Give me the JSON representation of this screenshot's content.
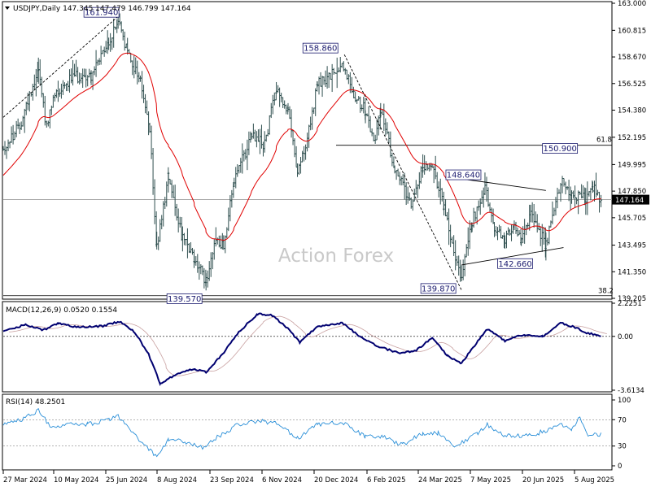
{
  "header": {
    "main": "USDJPY,Daily  147.345 147.479 146.799 147.164",
    "macd": "MACD(12,26,9) 0.0520 0.1554",
    "rsi": "RSI(14) 48.2501"
  },
  "watermark": "Action Forex",
  "chart_data": [
    {
      "type": "bar",
      "title": "USDJPY,Daily",
      "ohlc_last": {
        "open": 147.345,
        "high": 147.479,
        "low": 146.799,
        "close": 147.164
      },
      "ylim": [
        139.205,
        163.0
      ],
      "y_ticks": [
        "163.000",
        "160.815",
        "158.670",
        "156.525",
        "154.380",
        "152.195",
        "149.995",
        "147.850",
        "145.705",
        "143.495",
        "141.350",
        "139.205"
      ],
      "current_price_label": "147.164",
      "fib_levels": [
        {
          "label": "61.8",
          "value": 151.55
        },
        {
          "label": "38.2",
          "value": 139.42
        }
      ],
      "annotations": [
        {
          "label": "161.940",
          "x": "2024-07-03",
          "value": 161.94
        },
        {
          "label": "139.570",
          "x": "2024-09-16",
          "value": 139.57
        },
        {
          "label": "158.860",
          "x": "2025-01-10",
          "value": 158.86
        },
        {
          "label": "139.870",
          "x": "2025-04-22",
          "value": 139.87
        },
        {
          "label": "148.640",
          "x": "2025-05-12",
          "value": 148.64
        },
        {
          "label": "142.660",
          "x": "2025-05-27",
          "value": 142.66
        },
        {
          "label": "150.900",
          "x": "2025-08-01",
          "value": 150.9
        }
      ],
      "moving_average": {
        "color": "#e00000"
      },
      "bar_color": "#2f4f4f",
      "series": [
        {
          "x": "2024-03-27",
          "value": 151.2
        },
        {
          "x": "2024-04-10",
          "value": 153.1
        },
        {
          "x": "2024-04-26",
          "value": 157.8
        },
        {
          "x": "2024-05-03",
          "value": 152.9
        },
        {
          "x": "2024-05-10",
          "value": 155.7
        },
        {
          "x": "2024-05-24",
          "value": 157.0
        },
        {
          "x": "2024-06-10",
          "value": 157.2
        },
        {
          "x": "2024-06-25",
          "value": 159.7
        },
        {
          "x": "2024-07-03",
          "value": 161.6
        },
        {
          "x": "2024-07-11",
          "value": 159.0
        },
        {
          "x": "2024-07-22",
          "value": 156.8
        },
        {
          "x": "2024-07-30",
          "value": 152.7
        },
        {
          "x": "2024-08-05",
          "value": 143.2
        },
        {
          "x": "2024-08-15",
          "value": 149.2
        },
        {
          "x": "2024-08-27",
          "value": 144.0
        },
        {
          "x": "2024-09-06",
          "value": 142.3
        },
        {
          "x": "2024-09-16",
          "value": 140.6
        },
        {
          "x": "2024-09-23",
          "value": 143.7
        },
        {
          "x": "2024-10-01",
          "value": 143.6
        },
        {
          "x": "2024-10-10",
          "value": 148.6
        },
        {
          "x": "2024-10-25",
          "value": 152.3
        },
        {
          "x": "2024-11-05",
          "value": 151.6
        },
        {
          "x": "2024-11-15",
          "value": 156.3
        },
        {
          "x": "2024-11-25",
          "value": 154.2
        },
        {
          "x": "2024-12-03",
          "value": 149.6
        },
        {
          "x": "2024-12-10",
          "value": 151.2
        },
        {
          "x": "2024-12-20",
          "value": 156.4
        },
        {
          "x": "2025-01-03",
          "value": 157.3
        },
        {
          "x": "2025-01-10",
          "value": 158.2
        },
        {
          "x": "2025-01-20",
          "value": 155.8
        },
        {
          "x": "2025-01-30",
          "value": 154.3
        },
        {
          "x": "2025-02-06",
          "value": 151.8
        },
        {
          "x": "2025-02-12",
          "value": 154.4
        },
        {
          "x": "2025-02-24",
          "value": 149.7
        },
        {
          "x": "2025-03-10",
          "value": 147.0
        },
        {
          "x": "2025-03-20",
          "value": 149.8
        },
        {
          "x": "2025-03-28",
          "value": 150.1
        },
        {
          "x": "2025-04-07",
          "value": 146.5
        },
        {
          "x": "2025-04-14",
          "value": 143.4
        },
        {
          "x": "2025-04-22",
          "value": 140.8
        },
        {
          "x": "2025-05-01",
          "value": 145.4
        },
        {
          "x": "2025-05-12",
          "value": 148.3
        },
        {
          "x": "2025-05-20",
          "value": 144.5
        },
        {
          "x": "2025-05-29",
          "value": 144.1
        },
        {
          "x": "2025-06-06",
          "value": 144.9
        },
        {
          "x": "2025-06-12",
          "value": 143.6
        },
        {
          "x": "2025-06-20",
          "value": 146.1
        },
        {
          "x": "2025-06-27",
          "value": 144.7
        },
        {
          "x": "2025-07-03",
          "value": 143.5
        },
        {
          "x": "2025-07-10",
          "value": 146.3
        },
        {
          "x": "2025-07-17",
          "value": 148.8
        },
        {
          "x": "2025-07-25",
          "value": 147.6
        },
        {
          "x": "2025-08-01",
          "value": 147.4
        },
        {
          "x": "2025-08-06",
          "value": 147.4
        },
        {
          "x": "2025-08-12",
          "value": 148.1
        },
        {
          "x": "2025-08-19",
          "value": 147.2
        }
      ]
    },
    {
      "type": "line",
      "title": "MACD(12,26,9)",
      "last_values": {
        "macd": 0.052,
        "signal": 0.1554
      },
      "ylim": [
        -3.6134,
        2.2251
      ],
      "y_ticks": [
        "2.2251",
        "0.00",
        "-3.6134"
      ],
      "series": [
        {
          "x": "2024-03-27",
          "value": 0.3
        },
        {
          "x": "2024-04-15",
          "value": 0.8
        },
        {
          "x": "2024-04-30",
          "value": 0.4
        },
        {
          "x": "2024-05-13",
          "value": 0.9
        },
        {
          "x": "2024-05-30",
          "value": 0.6
        },
        {
          "x": "2024-06-20",
          "value": 0.7
        },
        {
          "x": "2024-07-04",
          "value": 1.0
        },
        {
          "x": "2024-07-17",
          "value": 0.3
        },
        {
          "x": "2024-07-29",
          "value": -1.2
        },
        {
          "x": "2024-08-08",
          "value": -3.2
        },
        {
          "x": "2024-08-22",
          "value": -2.5
        },
        {
          "x": "2024-09-05",
          "value": -2.2
        },
        {
          "x": "2024-09-16",
          "value": -2.4
        },
        {
          "x": "2024-09-30",
          "value": -1.2
        },
        {
          "x": "2024-10-14",
          "value": 0.3
        },
        {
          "x": "2024-10-30",
          "value": 1.5
        },
        {
          "x": "2024-11-12",
          "value": 1.4
        },
        {
          "x": "2024-11-25",
          "value": 0.5
        },
        {
          "x": "2024-12-05",
          "value": -0.4
        },
        {
          "x": "2024-12-19",
          "value": 0.6
        },
        {
          "x": "2025-01-10",
          "value": 0.9
        },
        {
          "x": "2025-01-27",
          "value": -0.1
        },
        {
          "x": "2025-02-11",
          "value": -0.7
        },
        {
          "x": "2025-02-27",
          "value": -1.1
        },
        {
          "x": "2025-03-13",
          "value": -1.0
        },
        {
          "x": "2025-03-28",
          "value": -0.1
        },
        {
          "x": "2025-04-10",
          "value": -1.3
        },
        {
          "x": "2025-04-22",
          "value": -1.8
        },
        {
          "x": "2025-05-06",
          "value": -0.3
        },
        {
          "x": "2025-05-14",
          "value": 0.5
        },
        {
          "x": "2025-05-29",
          "value": -0.3
        },
        {
          "x": "2025-06-13",
          "value": 0.1
        },
        {
          "x": "2025-06-30",
          "value": 0.0
        },
        {
          "x": "2025-07-16",
          "value": 0.9
        },
        {
          "x": "2025-07-28",
          "value": 0.6
        },
        {
          "x": "2025-08-08",
          "value": 0.2
        },
        {
          "x": "2025-08-19",
          "value": 0.05
        }
      ]
    },
    {
      "type": "line",
      "title": "RSI(14)",
      "last_value": 48.2501,
      "ylim": [
        0,
        100
      ],
      "y_ticks": [
        "100",
        "70",
        "30",
        "0"
      ],
      "levels": [
        70,
        30
      ],
      "series": [
        {
          "x": "2024-03-27",
          "value": 64
        },
        {
          "x": "2024-04-12",
          "value": 70
        },
        {
          "x": "2024-04-26",
          "value": 85
        },
        {
          "x": "2024-05-07",
          "value": 58
        },
        {
          "x": "2024-05-21",
          "value": 62
        },
        {
          "x": "2024-06-07",
          "value": 63
        },
        {
          "x": "2024-06-26",
          "value": 70
        },
        {
          "x": "2024-07-03",
          "value": 75
        },
        {
          "x": "2024-07-18",
          "value": 45
        },
        {
          "x": "2024-08-01",
          "value": 20
        },
        {
          "x": "2024-08-05",
          "value": 12
        },
        {
          "x": "2024-08-15",
          "value": 40
        },
        {
          "x": "2024-08-30",
          "value": 36
        },
        {
          "x": "2024-09-13",
          "value": 28
        },
        {
          "x": "2024-09-27",
          "value": 45
        },
        {
          "x": "2024-10-14",
          "value": 63
        },
        {
          "x": "2024-10-30",
          "value": 68
        },
        {
          "x": "2024-11-14",
          "value": 65
        },
        {
          "x": "2024-12-03",
          "value": 42
        },
        {
          "x": "2024-12-20",
          "value": 62
        },
        {
          "x": "2025-01-10",
          "value": 66
        },
        {
          "x": "2025-01-30",
          "value": 44
        },
        {
          "x": "2025-02-14",
          "value": 44
        },
        {
          "x": "2025-03-03",
          "value": 32
        },
        {
          "x": "2025-03-20",
          "value": 50
        },
        {
          "x": "2025-04-02",
          "value": 50
        },
        {
          "x": "2025-04-17",
          "value": 30
        },
        {
          "x": "2025-05-06",
          "value": 50
        },
        {
          "x": "2025-05-14",
          "value": 62
        },
        {
          "x": "2025-05-29",
          "value": 45
        },
        {
          "x": "2025-06-12",
          "value": 45
        },
        {
          "x": "2025-06-27",
          "value": 50
        },
        {
          "x": "2025-07-15",
          "value": 62
        },
        {
          "x": "2025-07-25",
          "value": 55
        },
        {
          "x": "2025-08-01",
          "value": 75
        },
        {
          "x": "2025-08-08",
          "value": 48
        },
        {
          "x": "2025-08-19",
          "value": 48
        }
      ]
    }
  ],
  "x_axis": {
    "ticks": [
      "27 Mar 2024",
      "10 May 2024",
      "25 Jun 2024",
      "8 Aug 2024",
      "23 Sep 2024",
      "6 Nov 2024",
      "20 Dec 2024",
      "6 Feb 2025",
      "24 Mar 2025",
      "7 May 2025",
      "20 Jun 2025",
      "5 Aug 2025"
    ]
  }
}
